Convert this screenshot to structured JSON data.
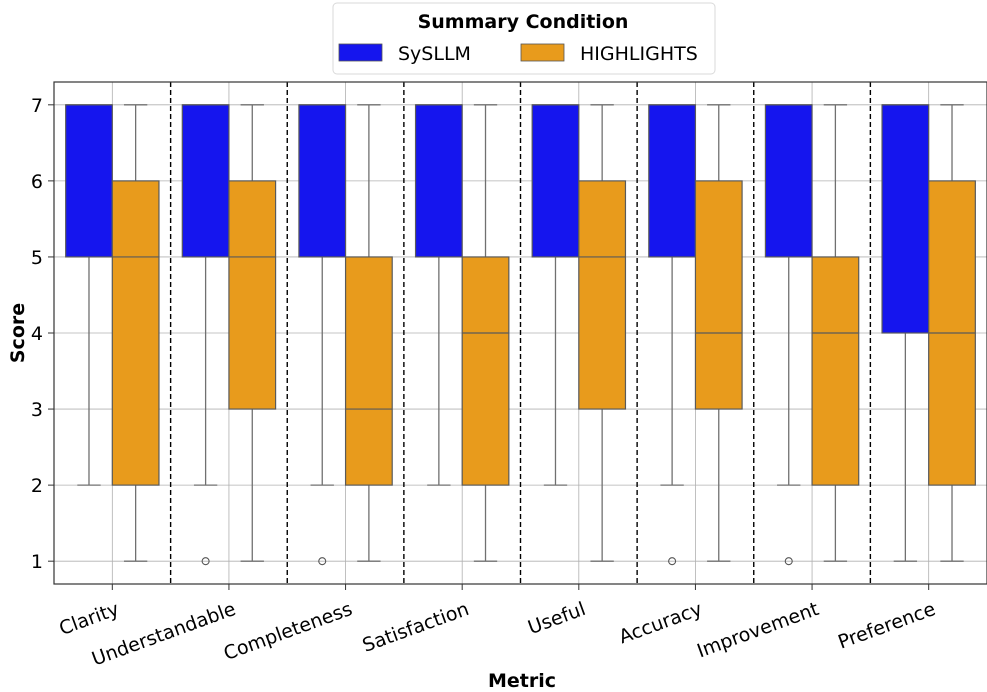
{
  "chart_data": {
    "type": "box",
    "title": "",
    "xlabel": "Metric",
    "ylabel": "Score",
    "ylim": [
      0.7,
      7.3
    ],
    "yticks": [
      1,
      2,
      3,
      4,
      5,
      6,
      7
    ],
    "grid": true,
    "legend": {
      "title": "Summary Condition",
      "placement": "top-center",
      "entries": [
        "SySLLM",
        "HIGHLIGHTS"
      ]
    },
    "categories": [
      "Clarity",
      "Understandable",
      "Completeness",
      "Satisfaction",
      "Useful",
      "Accuracy",
      "Improvement",
      "Preference"
    ],
    "series": [
      {
        "name": "SySLLM",
        "color": "#1515ee",
        "boxes": [
          {
            "min": 2,
            "q1": 5,
            "median": 7,
            "q3": 7,
            "max": 7,
            "outliers": []
          },
          {
            "min": 2,
            "q1": 5,
            "median": 7,
            "q3": 7,
            "max": 7,
            "outliers": [
              1
            ]
          },
          {
            "min": 2,
            "q1": 5,
            "median": 7,
            "q3": 7,
            "max": 7,
            "outliers": [
              1
            ]
          },
          {
            "min": 2,
            "q1": 5,
            "median": 7,
            "q3": 7,
            "max": 7,
            "outliers": []
          },
          {
            "min": 2,
            "q1": 5,
            "median": 7,
            "q3": 7,
            "max": 7,
            "outliers": []
          },
          {
            "min": 2,
            "q1": 5,
            "median": 7,
            "q3": 7,
            "max": 7,
            "outliers": [
              1
            ]
          },
          {
            "min": 2,
            "q1": 5,
            "median": 7,
            "q3": 7,
            "max": 7,
            "outliers": [
              1
            ]
          },
          {
            "min": 1,
            "q1": 4,
            "median": 7,
            "q3": 7,
            "max": 7,
            "outliers": []
          }
        ]
      },
      {
        "name": "HIGHLIGHTS",
        "color": "#e89b1c",
        "boxes": [
          {
            "min": 1,
            "q1": 2,
            "median": 5,
            "q3": 6,
            "max": 7,
            "outliers": []
          },
          {
            "min": 1,
            "q1": 3,
            "median": 5,
            "q3": 6,
            "max": 7,
            "outliers": []
          },
          {
            "min": 1,
            "q1": 2,
            "median": 3,
            "q3": 5,
            "max": 7,
            "outliers": []
          },
          {
            "min": 1,
            "q1": 2,
            "median": 4,
            "q3": 5,
            "max": 7,
            "outliers": []
          },
          {
            "min": 1,
            "q1": 3,
            "median": 5,
            "q3": 6,
            "max": 7,
            "outliers": []
          },
          {
            "min": 1,
            "q1": 3,
            "median": 4,
            "q3": 6,
            "max": 7,
            "outliers": []
          },
          {
            "min": 1,
            "q1": 2,
            "median": 4,
            "q3": 5,
            "max": 7,
            "outliers": []
          },
          {
            "min": 1,
            "q1": 2,
            "median": 4,
            "q3": 6,
            "max": 7,
            "outliers": []
          }
        ]
      }
    ]
  }
}
